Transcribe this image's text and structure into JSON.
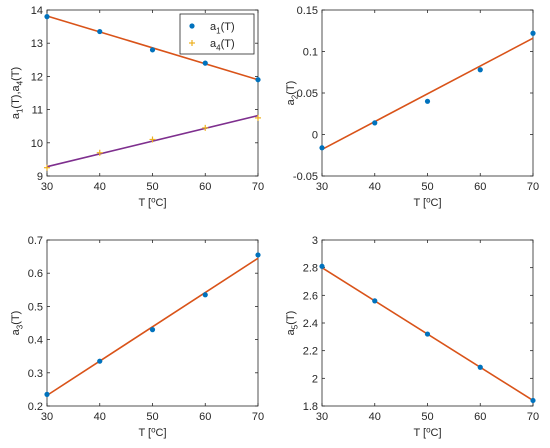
{
  "chart_data": [
    {
      "id": "p1",
      "type": "scatter",
      "xlabel": "T [°C]",
      "ylabel": "a1(T),a4(T)",
      "xlim": [
        30,
        70
      ],
      "ylim": [
        9,
        14
      ],
      "xticks": [
        30,
        40,
        50,
        60,
        70
      ],
      "yticks": [
        9,
        10,
        11,
        12,
        13,
        14
      ],
      "grid": false,
      "legend": {
        "placement": "top-right"
      },
      "series": [
        {
          "name": "a1(T)",
          "marker": "dot",
          "color": "#0072BD",
          "x": [
            30,
            40,
            50,
            60,
            70
          ],
          "y": [
            13.8,
            13.35,
            12.8,
            12.4,
            11.9
          ],
          "fit": {
            "color": "#D95319",
            "y_start": 13.82,
            "y_end": 11.9
          }
        },
        {
          "name": "a4(T)",
          "marker": "plus",
          "color": "#EDB120",
          "x": [
            30,
            40,
            50,
            60,
            70
          ],
          "y": [
            9.25,
            9.7,
            10.1,
            10.45,
            10.75
          ],
          "fit": {
            "color": "#7E2F8E",
            "y_start": 9.28,
            "y_end": 10.82
          }
        }
      ]
    },
    {
      "id": "p2",
      "type": "scatter",
      "xlabel": "T [°C]",
      "ylabel": "a2(T)",
      "xlim": [
        30,
        70
      ],
      "ylim": [
        -0.05,
        0.15
      ],
      "xticks": [
        30,
        40,
        50,
        60,
        70
      ],
      "yticks": [
        -0.05,
        0,
        0.05,
        0.1,
        0.15
      ],
      "grid": false,
      "series": [
        {
          "name": "",
          "marker": "dot",
          "color": "#0072BD",
          "x": [
            30,
            40,
            50,
            60,
            70
          ],
          "y": [
            -0.016,
            0.014,
            0.04,
            0.078,
            0.122
          ],
          "fit": {
            "color": "#D95319",
            "y_start": -0.018,
            "y_end": 0.116
          }
        }
      ]
    },
    {
      "id": "p3",
      "type": "scatter",
      "xlabel": "T [°C]",
      "ylabel": "a3(T)",
      "xlim": [
        30,
        70
      ],
      "ylim": [
        0.2,
        0.7
      ],
      "xticks": [
        30,
        40,
        50,
        60,
        70
      ],
      "yticks": [
        0.2,
        0.3,
        0.4,
        0.5,
        0.6,
        0.7
      ],
      "grid": false,
      "series": [
        {
          "name": "",
          "marker": "dot",
          "color": "#0072BD",
          "x": [
            30,
            40,
            50,
            60,
            70
          ],
          "y": [
            0.235,
            0.335,
            0.43,
            0.535,
            0.655
          ],
          "fit": {
            "color": "#D95319",
            "y_start": 0.232,
            "y_end": 0.645
          }
        }
      ]
    },
    {
      "id": "p4",
      "type": "scatter",
      "xlabel": "T [°C]",
      "ylabel": "a5(T)",
      "xlim": [
        30,
        70
      ],
      "ylim": [
        1.8,
        3.0
      ],
      "xticks": [
        30,
        40,
        50,
        60,
        70
      ],
      "yticks": [
        1.8,
        2,
        2.2,
        2.4,
        2.6,
        2.8,
        3
      ],
      "grid": false,
      "series": [
        {
          "name": "",
          "marker": "dot",
          "color": "#0072BD",
          "x": [
            30,
            40,
            50,
            60,
            70
          ],
          "y": [
            2.81,
            2.56,
            2.32,
            2.08,
            1.84
          ],
          "fit": {
            "color": "#D95319",
            "y_start": 2.8,
            "y_end": 1.84
          }
        }
      ]
    }
  ]
}
